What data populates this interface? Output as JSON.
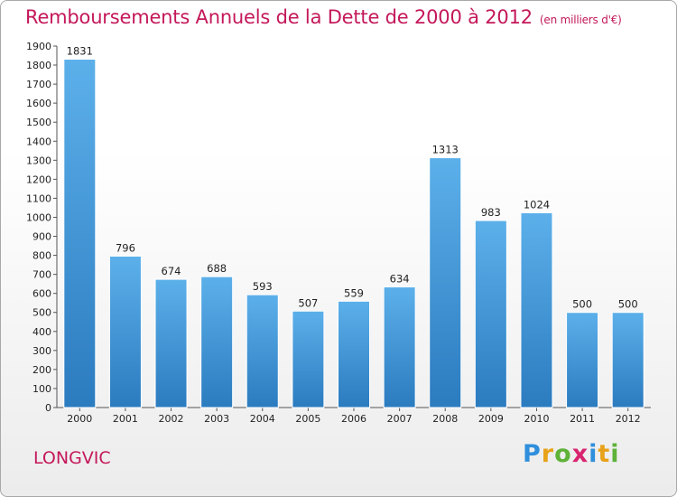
{
  "header": {
    "title": "Remboursements Annuels de la Dette de 2000 à 2012",
    "unit": "(en milliers d'€)"
  },
  "footer": {
    "city": "LONGVIC",
    "logo_letters": [
      "P",
      "r",
      "o",
      "x",
      "i",
      "t",
      "i"
    ],
    "logo_colors": [
      "#2f8fdc",
      "#e8a21a",
      "#5fb238",
      "#d8246e",
      "#2f8fdc",
      "#e8a21a",
      "#5fb238"
    ]
  },
  "colors": {
    "bar_top": "#5cb0ea",
    "bar_bottom": "#2b7bbf",
    "accent": "#c4185a"
  },
  "chart_data": {
    "type": "bar",
    "title": "Remboursements Annuels de la Dette de 2000 à 2012",
    "subtitle": "(en milliers d'€)",
    "categories": [
      "2000",
      "2001",
      "2002",
      "2003",
      "2004",
      "2005",
      "2006",
      "2007",
      "2008",
      "2009",
      "2010",
      "2011",
      "2012"
    ],
    "values": [
      1831,
      796,
      674,
      688,
      593,
      507,
      559,
      634,
      1313,
      983,
      1024,
      500,
      500
    ],
    "ylim": [
      0,
      1900
    ],
    "ytick_step": 100,
    "grid": false,
    "legend": "none"
  }
}
